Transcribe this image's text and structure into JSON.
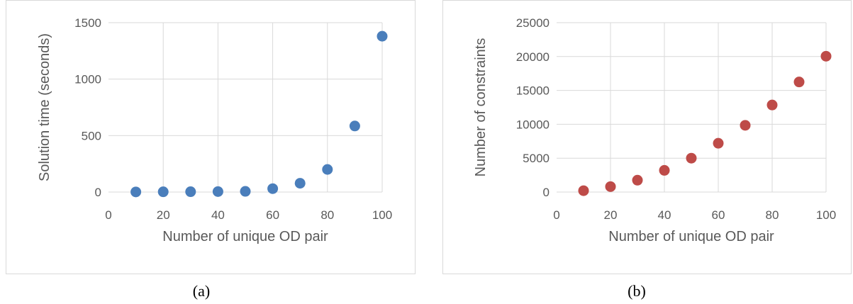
{
  "chart_data": [
    {
      "type": "scatter",
      "panel_label": "(a)",
      "xlabel": "Number of unique OD pair",
      "ylabel": "Solution  time (seconds)",
      "xlim": [
        0,
        100
      ],
      "ylim": [
        0,
        1500
      ],
      "xticks": [
        0,
        20,
        40,
        60,
        80,
        100
      ],
      "yticks": [
        0,
        500,
        1000,
        1500
      ],
      "grid": true,
      "color": "#4a7ebb",
      "series": [
        {
          "x": [
            10,
            20,
            30,
            40,
            50,
            60,
            70,
            80,
            90,
            100
          ],
          "y": [
            1,
            2,
            3,
            4,
            6,
            30,
            78,
            200,
            585,
            1380
          ]
        }
      ]
    },
    {
      "type": "scatter",
      "panel_label": "(b)",
      "xlabel": "Number of unique OD pair",
      "ylabel": "Number of constraints",
      "xlim": [
        0,
        100
      ],
      "ylim": [
        0,
        25000
      ],
      "xticks": [
        0,
        20,
        40,
        60,
        80,
        100
      ],
      "yticks": [
        0,
        5000,
        10000,
        15000,
        20000,
        25000
      ],
      "grid": true,
      "color": "#be4b48",
      "series": [
        {
          "x": [
            10,
            20,
            30,
            40,
            50,
            60,
            70,
            80,
            90,
            100
          ],
          "y": [
            200,
            800,
            1750,
            3200,
            5000,
            7200,
            9850,
            12850,
            16250,
            20050
          ]
        }
      ]
    }
  ]
}
